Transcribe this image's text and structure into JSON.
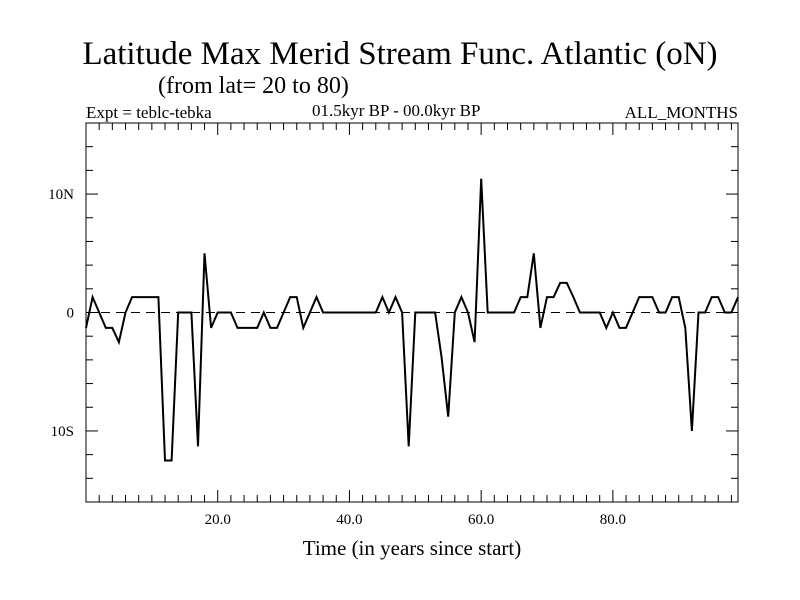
{
  "header": {
    "title": "Latitude Max Merid Stream Func. Atlantic (oN)",
    "subtitle": "(from lat= 20 to 80)",
    "experiment": "Expt = teblc-tebka",
    "period": "01.5kyr BP - 00.0kyr BP",
    "months": "ALL_MONTHS"
  },
  "chart_data": {
    "type": "line",
    "title": "Latitude Max Merid Stream Func. Atlantic (oN)",
    "subtitle": "(from lat= 20 to 80)",
    "xlabel": "Time (in years since start)",
    "ylabel": "",
    "xlim": [
      0,
      99
    ],
    "ylim": [
      -16,
      16
    ],
    "x_ticks": [
      {
        "value": 20,
        "label": "20.0"
      },
      {
        "value": 40,
        "label": "40.0"
      },
      {
        "value": 60,
        "label": "60.0"
      },
      {
        "value": 80,
        "label": "80.0"
      }
    ],
    "y_ticks": [
      {
        "value": 10,
        "label": "10N"
      },
      {
        "value": 0,
        "label": "0"
      },
      {
        "value": -10,
        "label": "10S"
      }
    ],
    "reference_line": {
      "y": 0,
      "style": "dashed"
    },
    "series": [
      {
        "name": "Latitude Max Merid Stream Func.",
        "x": [
          0,
          1,
          2,
          3,
          4,
          5,
          6,
          7,
          8,
          9,
          10,
          11,
          12,
          13,
          14,
          15,
          16,
          17,
          18,
          19,
          20,
          21,
          22,
          23,
          24,
          25,
          26,
          27,
          28,
          29,
          30,
          31,
          32,
          33,
          34,
          35,
          36,
          37,
          38,
          39,
          40,
          41,
          42,
          43,
          44,
          45,
          46,
          47,
          48,
          49,
          50,
          51,
          52,
          53,
          54,
          55,
          56,
          57,
          58,
          59,
          60,
          61,
          62,
          63,
          64,
          65,
          66,
          67,
          68,
          69,
          70,
          71,
          72,
          73,
          74,
          75,
          76,
          77,
          78,
          79,
          80,
          81,
          82,
          83,
          84,
          85,
          86,
          87,
          88,
          89,
          90,
          91,
          92,
          93,
          94,
          95,
          96,
          97,
          98,
          99
        ],
        "y": [
          -1.3,
          1.3,
          0,
          -1.3,
          -1.3,
          -2.5,
          0,
          1.3,
          1.3,
          1.3,
          1.3,
          1.3,
          -12.5,
          -12.5,
          0,
          0,
          0,
          -11.3,
          5,
          -1.3,
          0,
          0,
          0,
          -1.3,
          -1.3,
          -1.3,
          -1.3,
          0,
          -1.3,
          -1.3,
          0,
          1.3,
          1.3,
          -1.3,
          0,
          1.3,
          0,
          0,
          0,
          0,
          0,
          0,
          0,
          0,
          0,
          1.3,
          0,
          1.3,
          0,
          -11.3,
          0,
          0,
          0,
          0,
          -3.8,
          -8.8,
          0,
          1.3,
          0,
          -2.5,
          11.3,
          0,
          0,
          0,
          0,
          0,
          1.3,
          1.3,
          5,
          -1.3,
          1.3,
          1.3,
          2.5,
          2.5,
          1.3,
          0,
          0,
          0,
          0,
          -1.3,
          0,
          -1.3,
          -1.3,
          0,
          1.3,
          1.3,
          1.3,
          0,
          0,
          1.3,
          1.3,
          -1.3,
          -10,
          0,
          0,
          1.3,
          1.3,
          0,
          0,
          1.3
        ]
      }
    ]
  }
}
